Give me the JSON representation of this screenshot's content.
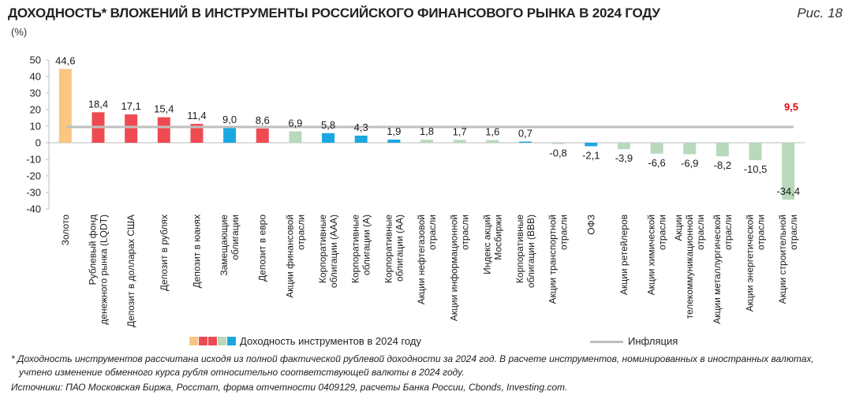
{
  "title": "ДОХОДНОСТЬ* ВЛОЖЕНИЙ В ИНСТРУМЕНТЫ РОССИЙСКОГО ФИНАНСОВОГО РЫНКА В 2024 ГОДУ",
  "figure_label": "Рис. 18",
  "unit": "(%)",
  "colors": {
    "gold": "#f9c77f",
    "red": "#ef4a52",
    "blue": "#1aa8e0",
    "green": "#b8d9bb",
    "inflation": "#bfbfbf",
    "inflation_label": "#e30613"
  },
  "chart_data": {
    "type": "bar",
    "ylim": [
      -40,
      50
    ],
    "yticks": [
      -40,
      -30,
      -20,
      -10,
      0,
      10,
      20,
      30,
      40,
      50
    ],
    "categories": [
      "Золото",
      "Рублевый фонд денежного рынка (LQDT)",
      "Депозит в долларах США",
      "Депозит в рублях",
      "Депозит в юанях",
      "Замещающие облигации",
      "Депозит в евро",
      "Акции финансовой отрасли",
      "Корпоративные облигации (ААА)",
      "Корпоративные облигации (А)",
      "Корпоративные облигации (АА)",
      "Акции нефтегазовой отрасли",
      "Акции информационной отрасли",
      "Индекс акций Мосбиржи",
      "Корпоративные облигации (ВВВ)",
      "Акции транспортной отрасли",
      "ОФЗ",
      "Акции ретейлеров",
      "Акции химической отрасли",
      "Акции телекоммуникационной отрасли",
      "Акции металлургической отрасли",
      "Акции энергетической отрасли",
      "Акции строительной отрасли"
    ],
    "category_lines": [
      [
        "Золото"
      ],
      [
        "Рублевый фонд",
        "денежного рынка (LQDT)"
      ],
      [
        "Депозит в долларах США"
      ],
      [
        "Депозит в рублях"
      ],
      [
        "Депозит в юанях"
      ],
      [
        "Замещающие",
        "облигации"
      ],
      [
        "Депозит в евро"
      ],
      [
        "Акции финансовой",
        "отрасли"
      ],
      [
        "Корпоративные",
        "облигации (ААА)"
      ],
      [
        "Корпоративные",
        "облигации (А)"
      ],
      [
        "Корпоративные",
        "облигации (АА)"
      ],
      [
        "Акции нефтегазовой",
        "отрасли"
      ],
      [
        "Акции информационной",
        "отрасли"
      ],
      [
        "Индекс акций",
        "Мосбиржи"
      ],
      [
        "Корпоративные",
        "облигации (ВВВ)"
      ],
      [
        "Акции транспортной",
        "отрасли"
      ],
      [
        "ОФЗ"
      ],
      [
        "Акции ретейлеров"
      ],
      [
        "Акции химической",
        "отрасли"
      ],
      [
        "Акции",
        "телекоммуникационной",
        "отрасли"
      ],
      [
        "Акции металлургической",
        "отрасли"
      ],
      [
        "Акции энергетической",
        "отрасли"
      ],
      [
        "Акции строительной",
        "отрасли"
      ]
    ],
    "values": [
      44.6,
      18.4,
      17.1,
      15.4,
      11.4,
      9.0,
      8.6,
      6.9,
      5.8,
      4.3,
      1.9,
      1.8,
      1.7,
      1.6,
      0.7,
      -0.8,
      -2.1,
      -3.9,
      -6.6,
      -6.9,
      -8.2,
      -10.5,
      -34.4
    ],
    "value_labels": [
      "44,6",
      "18,4",
      "17,1",
      "15,4",
      "11,4",
      "9,0",
      "8,6",
      "6,9",
      "5,8",
      "4,3",
      "1,9",
      "1,8",
      "1,7",
      "1,6",
      "0,7",
      "-0,8",
      "-2,1",
      "-3,9",
      "-6,6",
      "-6,9",
      "-8,2",
      "-10,5",
      "-34,4"
    ],
    "bar_colors": [
      "gold",
      "red",
      "red",
      "red",
      "red",
      "blue",
      "red",
      "green",
      "blue",
      "blue",
      "blue",
      "green",
      "green",
      "green",
      "blue",
      "green",
      "blue",
      "green",
      "green",
      "green",
      "green",
      "green",
      "green"
    ],
    "inflation": 9.5,
    "inflation_label": "9,5"
  },
  "legend": {
    "returns_label": "Доходность инструментов в 2024 году",
    "inflation_label": "Инфляция"
  },
  "notes": {
    "footnote_line1": "* Доходность инструментов рассчитана исходя из полной фактической рублевой доходности за 2024 год. В расчете инструментов, номинированных в иностранных валютах,",
    "footnote_line2": "учтено изменение обменного курса рубля относительно соответствующей валюты в 2024 году.",
    "sources": "Источники: ПАО Московская Биржа, Росстат, форма отчетности 0409129, расчеты Банка России, Cbonds, Investing.com."
  }
}
